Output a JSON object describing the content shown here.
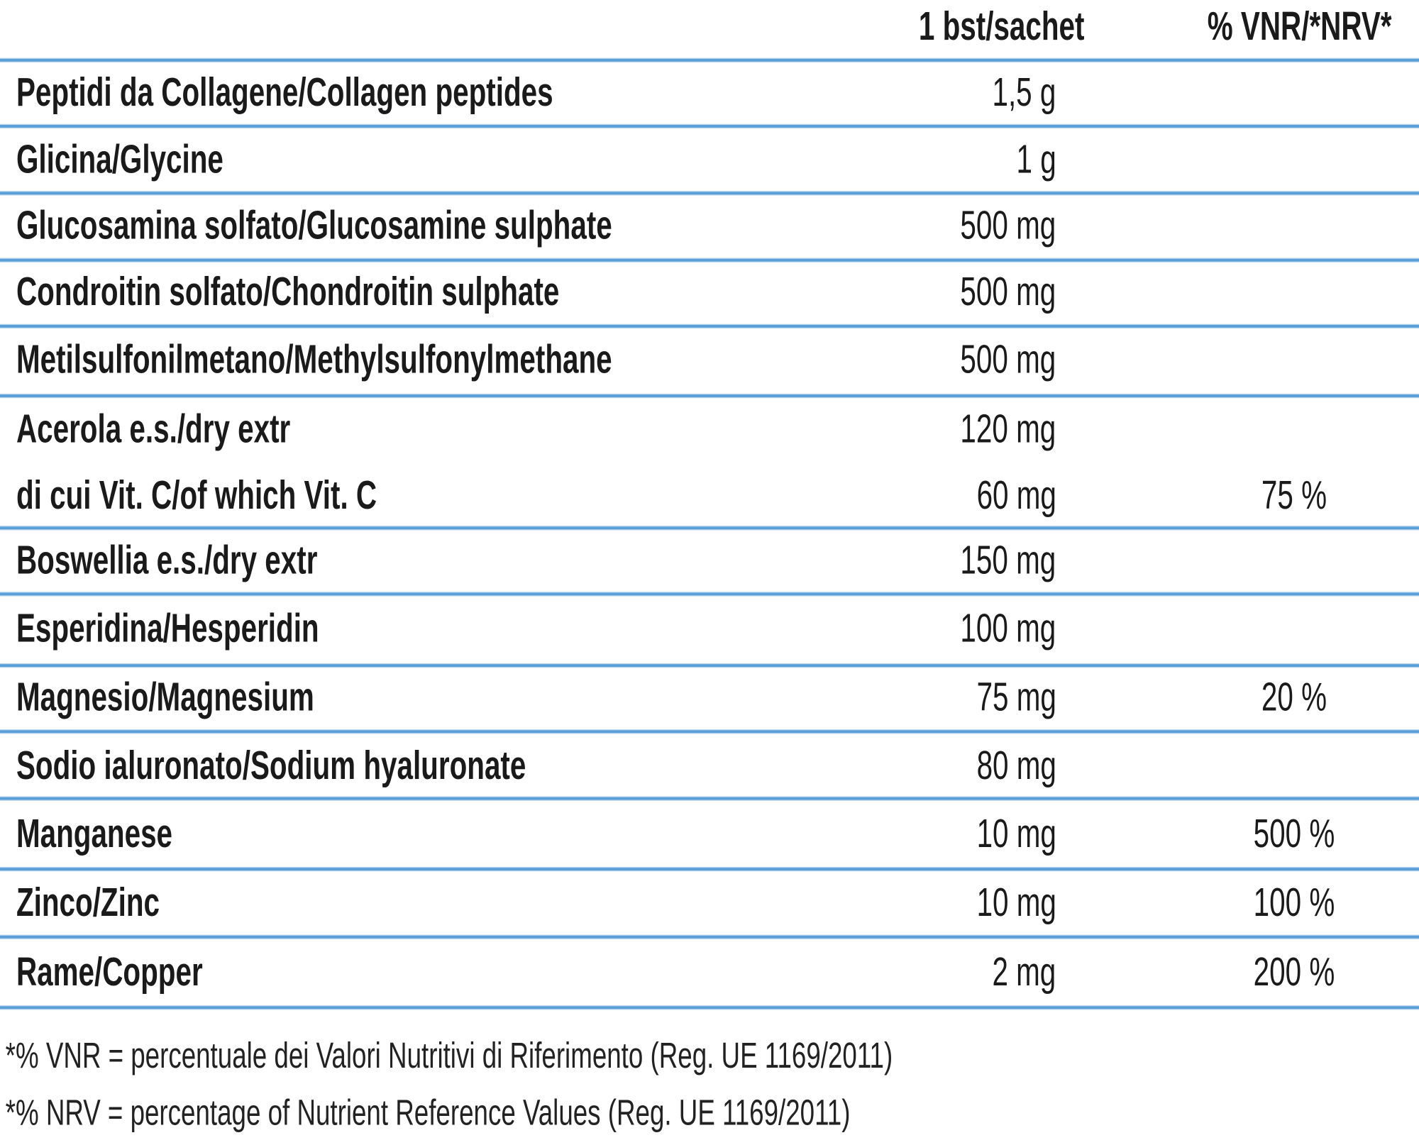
{
  "header": {
    "per_sachet": "1 bst/sachet",
    "nrv": "% VNR/*NRV*"
  },
  "rows": [
    {
      "label": "Peptidi da Collagene/Collagen peptides",
      "value": "1,5 g",
      "nrv": ""
    },
    {
      "label": "Glicina/Glycine",
      "value": "1 g",
      "nrv": ""
    },
    {
      "label": "Glucosamina solfato/Glucosamine sulphate",
      "value": "500 mg",
      "nrv": ""
    },
    {
      "label": "Condroitin solfato/Chondroitin sulphate",
      "value": "500 mg",
      "nrv": ""
    },
    {
      "label": "Metilsulfonilmetano/Methylsulfonylmethane",
      "value": "500 mg",
      "nrv": ""
    },
    {
      "label": "Acerola e.s./dry extr",
      "value": "120 mg",
      "nrv": ""
    },
    {
      "label": "di cui Vit. C/of which Vit. C",
      "value": "60 mg",
      "nrv": "75 %"
    },
    {
      "label": "Boswellia e.s./dry extr",
      "value": "150 mg",
      "nrv": ""
    },
    {
      "label": "Esperidina/Hesperidin",
      "value": "100 mg",
      "nrv": ""
    },
    {
      "label": "Magnesio/Magnesium",
      "value": "75 mg",
      "nrv": "20 %"
    },
    {
      "label": "Sodio ialuronato/Sodium hyaluronate",
      "value": "80 mg",
      "nrv": ""
    },
    {
      "label": "Manganese",
      "value": "10 mg",
      "nrv": "500 %"
    },
    {
      "label": "Zinco/Zinc",
      "value": "10 mg",
      "nrv": "100 %"
    },
    {
      "label": "Rame/Copper",
      "value": "2 mg",
      "nrv": "200 %"
    }
  ],
  "footnotes": [
    "*% VNR = percentuale dei Valori Nutritivi di Riferimento (Reg. UE 1169/2011)",
    "*% NRV = percentage of Nutrient Reference Values (Reg. UE 1169/2011)"
  ],
  "colors": {
    "rule": "#5b9fd9"
  }
}
